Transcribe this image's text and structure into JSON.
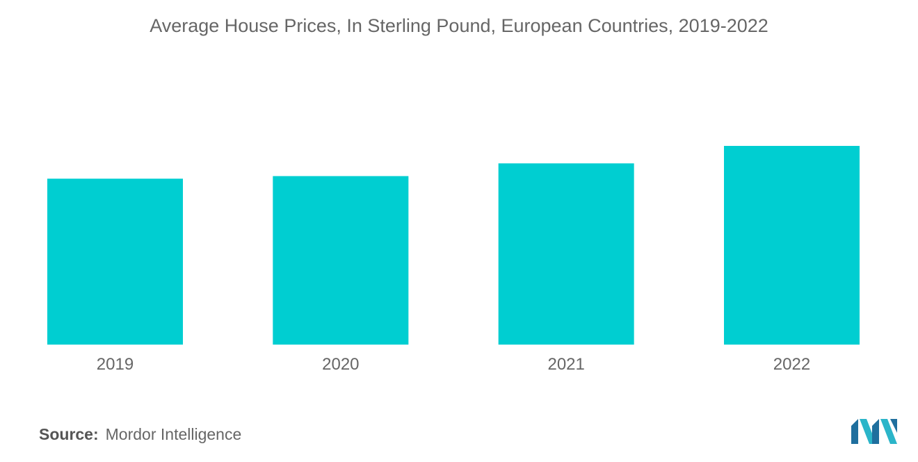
{
  "title": "Average House Prices, In Sterling Pound, European Countries, 2019-2022",
  "source": {
    "label": "Source:",
    "text": "Mordor Intelligence"
  },
  "logo": {
    "icon": "mordor-intelligence-logo-icon",
    "colors": [
      "#1f6f9e",
      "#2bb5c9"
    ]
  },
  "colors": {
    "bar": "#00ced1",
    "text": "#666666"
  },
  "chart_data": {
    "type": "bar",
    "title": "Average House Prices, In Sterling Pound, European Countries, 2019-2022",
    "categories": [
      "2019",
      "2020",
      "2021",
      "2022"
    ],
    "values": [
      83.5,
      84.8,
      91.2,
      100
    ],
    "xlabel": "",
    "ylabel": "",
    "ylim": [
      0,
      100
    ],
    "grid": false,
    "legend": "none"
  }
}
